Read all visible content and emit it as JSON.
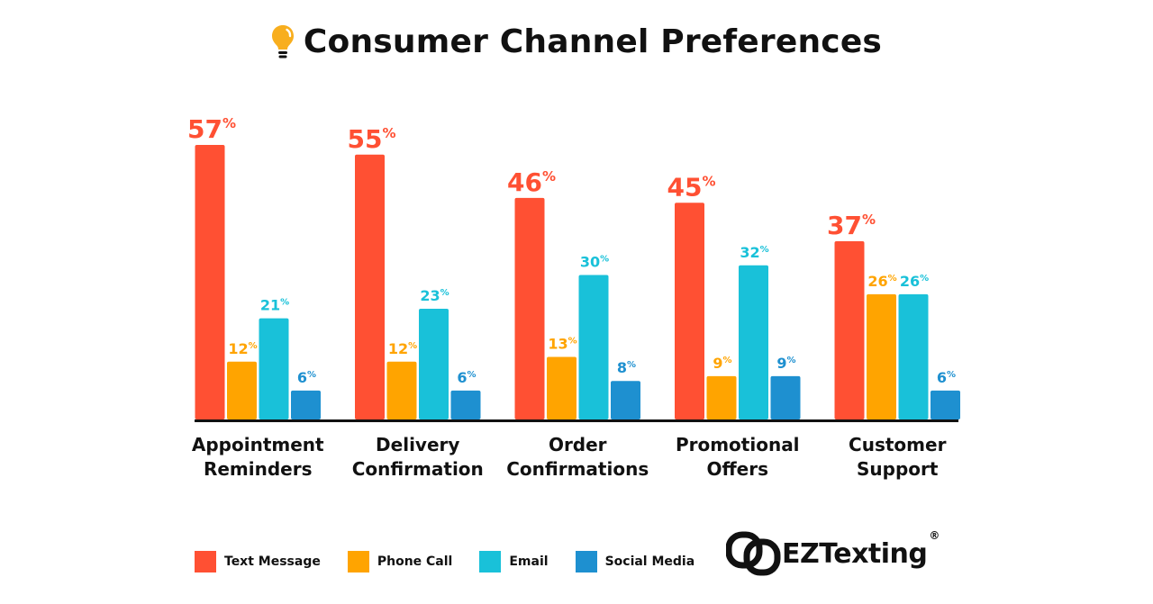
{
  "title": "Consumer Channel Preferences",
  "title_icon": "lightbulb-icon",
  "brand": {
    "logo_icon": "chain-link-icon",
    "name": "EZTexting",
    "reg_mark": "®"
  },
  "colors": {
    "Text Message": "#FF5033",
    "Phone Call": "#FFA400",
    "Email": "#19C1D9",
    "Social Media": "#1E90D0",
    "baseline": "#111111",
    "title_icon": "#F8AE1E"
  },
  "chart_data": {
    "type": "bar",
    "title": "Consumer Channel Preferences",
    "unit_symbol": "%",
    "categories": [
      [
        "Appointment",
        "Reminders"
      ],
      [
        "Delivery",
        "Confirmation"
      ],
      [
        "Order",
        "Confirmations"
      ],
      [
        "Promotional",
        "Offers"
      ],
      [
        "Customer",
        "Support"
      ]
    ],
    "series": [
      {
        "name": "Text Message",
        "values": [
          57,
          55,
          46,
          45,
          37
        ]
      },
      {
        "name": "Phone Call",
        "values": [
          12,
          12,
          13,
          9,
          26
        ]
      },
      {
        "name": "Email",
        "values": [
          21,
          23,
          30,
          32,
          26
        ]
      },
      {
        "name": "Social Media",
        "values": [
          6,
          6,
          8,
          9,
          6
        ]
      }
    ],
    "ylim": [
      0,
      60
    ],
    "grid": false,
    "legend_position": "bottom-left"
  }
}
